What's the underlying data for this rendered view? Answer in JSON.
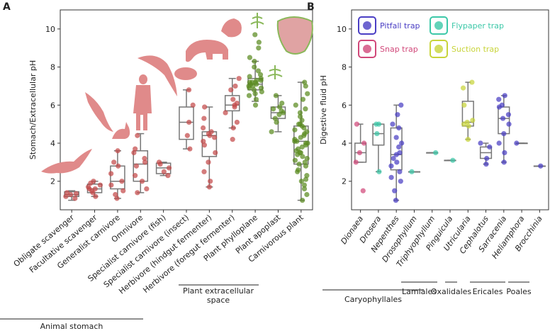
{
  "figure": {
    "panel_a_letter": "A",
    "panel_b_letter": "B"
  },
  "colors": {
    "animal": "#c44a4a",
    "plant": "#5a8a20",
    "pitfall": "#4a3ec4",
    "snap": "#d1487a",
    "flypaper": "#3cc8a8",
    "suction": "#c8d43a",
    "box": "#777777",
    "silhouette_animal": "#e08a8a",
    "silhouette_plant": "#8ab85a"
  },
  "chart_data": [
    {
      "type": "box+strip",
      "panel": "A",
      "title": "",
      "ylabel": "Stomach/Extracellular pH",
      "ylim": [
        0.5,
        11.0
      ],
      "yticks": [
        2,
        4,
        6,
        8,
        10
      ],
      "categories": [
        "Obligate scavenger",
        "Facultative scavenger",
        "Generalist carnivore",
        "Omnivore",
        "Specialist carnivore (fish)",
        "Specialist carnivore (insect)",
        "Herbivore (hindgut fermenter)",
        "Herbivore (foregut fermenter)",
        "Plant phylloplane",
        "Plant apoplast",
        "Carnivorous plant"
      ],
      "kind": [
        "animal",
        "animal",
        "animal",
        "animal",
        "animal",
        "animal",
        "animal",
        "animal",
        "plant",
        "plant",
        "plant"
      ],
      "boxes": [
        {
          "q1": 1.2,
          "median": 1.3,
          "q3": 1.45,
          "whisker_low": 1.0,
          "whisker_high": 1.5
        },
        {
          "q1": 1.4,
          "median": 1.6,
          "q3": 1.85,
          "whisker_low": 1.2,
          "whisker_high": 2.0
        },
        {
          "q1": 1.6,
          "median": 2.0,
          "q3": 2.8,
          "whisker_low": 1.1,
          "whisker_high": 3.6
        },
        {
          "q1": 2.0,
          "median": 2.9,
          "q3": 3.6,
          "whisker_low": 1.4,
          "whisker_high": 4.5
        },
        {
          "q1": 2.4,
          "median": 2.7,
          "q3": 2.95,
          "whisker_low": 2.3,
          "whisker_high": 3.0
        },
        {
          "q1": 4.2,
          "median": 5.1,
          "q3": 5.9,
          "whisker_low": 3.7,
          "whisker_high": 6.8
        },
        {
          "q1": 3.3,
          "median": 4.4,
          "q3": 4.6,
          "whisker_low": 1.7,
          "whisker_high": 5.9
        },
        {
          "q1": 5.7,
          "median": 6.0,
          "q3": 6.5,
          "whisker_low": 4.8,
          "whisker_high": 7.4
        },
        {
          "q1": 6.8,
          "median": 7.1,
          "q3": 7.4,
          "whisker_low": 6.2,
          "whisker_high": 8.3
        },
        {
          "q1": 5.3,
          "median": 5.6,
          "q3": 5.9,
          "whisker_low": 4.6,
          "whisker_high": 6.5
        },
        {
          "q1": 2.9,
          "median": 4.1,
          "q3": 4.9,
          "whisker_low": 1.0,
          "whisker_high": 7.2
        }
      ],
      "points": [
        [
          1.1,
          1.2,
          1.3,
          1.35,
          1.4
        ],
        [
          1.2,
          1.4,
          1.5,
          1.6,
          1.6,
          1.7,
          1.8,
          1.9,
          2.0
        ],
        [
          1.1,
          1.3,
          1.5,
          1.8,
          2.0,
          2.4,
          2.8,
          3.0,
          3.6
        ],
        [
          1.4,
          1.6,
          2.0,
          2.3,
          2.8,
          3.0,
          3.2,
          3.5,
          3.7,
          4.4
        ],
        [
          2.3,
          2.5,
          2.7,
          2.9,
          3.0
        ],
        [
          3.7,
          4.4,
          5.1,
          6.0,
          6.8
        ],
        [
          1.7,
          2.0,
          2.5,
          3.0,
          3.5,
          3.9,
          4.1,
          4.3,
          4.4,
          4.5,
          4.6,
          4.8,
          5.3,
          5.9
        ],
        [
          4.2,
          4.8,
          5.1,
          5.6,
          5.9,
          6.0,
          6.1,
          6.3,
          6.8,
          7.0,
          7.4
        ],
        [
          6.0,
          6.3,
          6.5,
          6.6,
          6.7,
          6.8,
          6.9,
          6.9,
          7.0,
          7.0,
          7.1,
          7.1,
          7.2,
          7.2,
          7.2,
          7.3,
          7.3,
          7.4,
          7.5,
          7.6,
          7.8,
          8.0,
          8.3,
          8.5,
          9.0,
          9.3,
          9.7
        ],
        [
          4.6,
          5.1,
          5.3,
          5.5,
          5.6,
          5.7,
          5.8,
          5.9,
          6.1,
          6.5
        ],
        [
          1.0,
          1.3,
          1.6,
          1.8,
          2.0,
          2.1,
          2.3,
          2.5,
          2.6,
          2.8,
          2.9,
          3.0,
          3.1,
          3.2,
          3.3,
          3.4,
          3.5,
          3.5,
          3.6,
          3.7,
          3.8,
          3.9,
          4.0,
          4.0,
          4.1,
          4.1,
          4.2,
          4.3,
          4.4,
          4.5,
          4.6,
          4.7,
          4.8,
          4.9,
          5.0,
          5.0,
          5.2,
          5.4,
          5.6,
          5.8,
          6.0,
          6.3,
          6.6,
          7.0,
          7.2
        ]
      ],
      "group_labels": [
        {
          "text": "Animal stomach",
          "from": 0,
          "to": 7
        },
        {
          "text_line1": "Plant extracellular",
          "text_line2": "space",
          "from": 7,
          "to": 10
        }
      ]
    },
    {
      "type": "box+strip",
      "panel": "B",
      "title": "",
      "ylabel": "Digestive fluid pH",
      "ylim": [
        0.5,
        11.0
      ],
      "yticks": [
        2,
        4,
        6,
        8,
        10
      ],
      "categories": [
        "Dionaea",
        "Drosera",
        "Nepenthes",
        "Drosophyllum",
        "Triphyophyllum",
        "Pinguicula",
        "Utricularia",
        "Cephalotus",
        "Sarracenia",
        "Heliamphora",
        "Brocchinia"
      ],
      "trap": [
        "snap",
        "flypaper",
        "pitfall",
        "flypaper",
        "flypaper",
        "flypaper",
        "suction",
        "pitfall",
        "pitfall",
        "pitfall",
        "pitfall"
      ],
      "boxes": [
        {
          "q1": 3.0,
          "median": 3.5,
          "q3": 4.0,
          "whisker_low": 3.0,
          "whisker_high": 5.0
        },
        {
          "q1": 3.9,
          "median": 4.5,
          "q3": 5.0,
          "whisker_low": 2.5,
          "whisker_high": 5.0
        },
        {
          "q1": 2.6,
          "median": 3.4,
          "q3": 4.8,
          "whisker_low": 1.0,
          "whisker_high": 6.0
        },
        {
          "q1": 2.5,
          "median": 2.5,
          "q3": 2.5,
          "whisker_low": 2.5,
          "whisker_high": 2.5
        },
        {
          "q1": 3.5,
          "median": 3.5,
          "q3": 3.5,
          "whisker_low": 3.5,
          "whisker_high": 3.5
        },
        {
          "q1": 3.1,
          "median": 3.1,
          "q3": 3.1,
          "whisker_low": 3.1,
          "whisker_high": 3.1
        },
        {
          "q1": 4.9,
          "median": 5.1,
          "q3": 6.2,
          "whisker_low": 4.2,
          "whisker_high": 7.2
        },
        {
          "q1": 3.2,
          "median": 3.5,
          "q3": 3.8,
          "whisker_low": 2.9,
          "whisker_high": 4.0
        },
        {
          "q1": 4.5,
          "median": 5.3,
          "q3": 5.9,
          "whisker_low": 3.0,
          "whisker_high": 6.5
        },
        {
          "q1": 4.0,
          "median": 4.0,
          "q3": 4.0,
          "whisker_low": 4.0,
          "whisker_high": 4.0
        },
        {
          "q1": 2.8,
          "median": 2.8,
          "q3": 2.8,
          "whisker_low": 2.8,
          "whisker_high": 2.8
        }
      ],
      "points": [
        [
          1.5,
          3.0,
          3.5,
          4.0,
          5.0
        ],
        [
          2.5,
          4.5,
          5.0,
          5.0
        ],
        [
          1.0,
          1.5,
          2.0,
          2.2,
          2.5,
          2.8,
          3.0,
          3.2,
          3.4,
          3.5,
          3.8,
          4.0,
          4.3,
          4.8,
          5.0,
          5.5,
          6.0
        ],
        [
          2.5
        ],
        [
          3.5
        ],
        [
          3.1
        ],
        [
          4.2,
          4.9,
          5.0,
          5.1,
          5.2,
          6.0,
          6.9,
          7.2
        ],
        [
          2.9,
          3.2,
          3.8,
          4.0
        ],
        [
          3.0,
          3.5,
          4.0,
          4.5,
          5.0,
          5.3,
          5.5,
          5.9,
          6.0,
          6.3,
          6.5
        ],
        [
          4.0
        ],
        [
          2.8
        ]
      ],
      "legend": [
        {
          "key": "pitfall",
          "label": "Pitfall trap"
        },
        {
          "key": "flypaper",
          "label": "Flypaper trap"
        },
        {
          "key": "snap",
          "label": "Snap trap"
        },
        {
          "key": "suction",
          "label": "Suction trap"
        }
      ],
      "group_labels": [
        {
          "text": "Caryophyllales",
          "from": 0,
          "to": 4
        },
        {
          "text": "Lamiales",
          "from": 5,
          "to": 6
        },
        {
          "text": "Oxalidales",
          "from": 7,
          "to": 7
        },
        {
          "text": "Ericales",
          "from": 8,
          "to": 9
        },
        {
          "text": "Poales",
          "from": 10,
          "to": 10
        }
      ]
    }
  ]
}
